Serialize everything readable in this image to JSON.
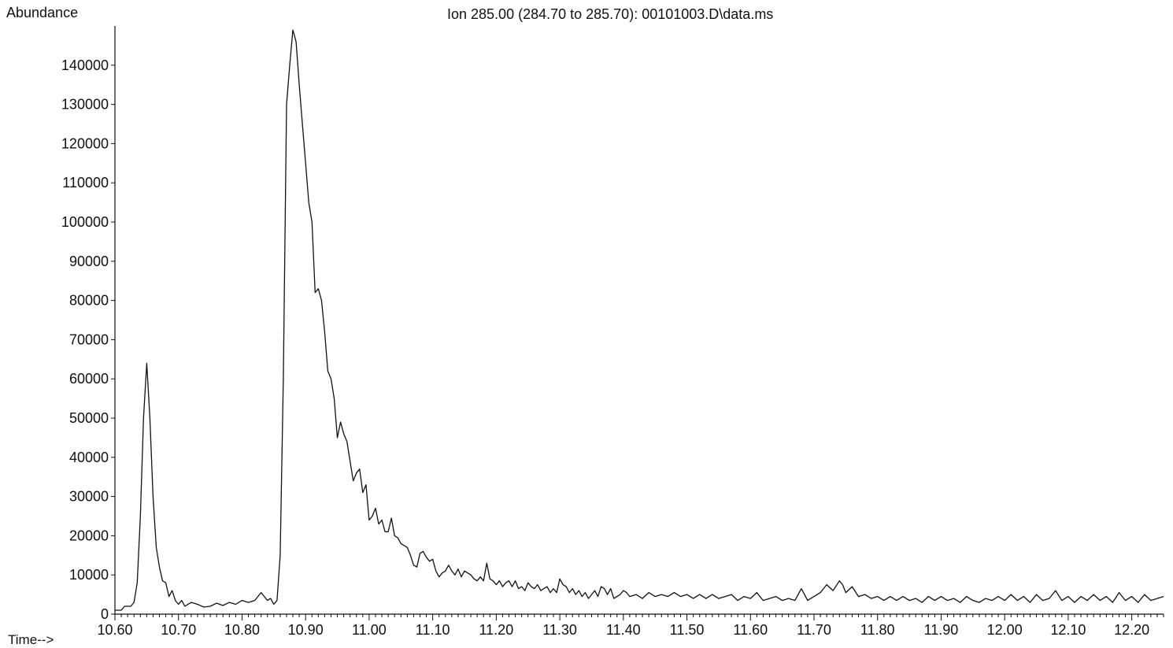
{
  "chart_data": {
    "type": "line",
    "title": "Ion 285.00 (284.70 to 285.70): 00101003.D\\data.ms",
    "ylabel": "Abundance",
    "xlabel": "Time-->",
    "xlim": [
      10.6,
      12.25
    ],
    "ylim": [
      0,
      150000
    ],
    "x_ticks": [
      "10.60",
      "10.70",
      "10.80",
      "10.90",
      "11.00",
      "11.10",
      "11.20",
      "11.30",
      "11.40",
      "11.50",
      "11.60",
      "11.70",
      "11.80",
      "11.90",
      "12.00",
      "12.10",
      "12.20"
    ],
    "y_ticks": [
      "0",
      "10000",
      "20000",
      "30000",
      "40000",
      "50000",
      "60000",
      "70000",
      "80000",
      "90000",
      "100000",
      "110000",
      "120000",
      "130000",
      "140000"
    ],
    "grid": false,
    "series": [
      {
        "points": [
          [
            10.6,
            1000
          ],
          [
            10.61,
            1000
          ],
          [
            10.615,
            2000
          ],
          [
            10.625,
            2000
          ],
          [
            10.63,
            3000
          ],
          [
            10.635,
            8000
          ],
          [
            10.64,
            25000
          ],
          [
            10.645,
            50000
          ],
          [
            10.65,
            64000
          ],
          [
            10.655,
            50000
          ],
          [
            10.66,
            30000
          ],
          [
            10.665,
            17000
          ],
          [
            10.67,
            12000
          ],
          [
            10.675,
            8500
          ],
          [
            10.68,
            8000
          ],
          [
            10.685,
            4500
          ],
          [
            10.69,
            6000
          ],
          [
            10.695,
            3500
          ],
          [
            10.7,
            2500
          ],
          [
            10.705,
            3500
          ],
          [
            10.71,
            2000
          ],
          [
            10.72,
            3000
          ],
          [
            10.73,
            2500
          ],
          [
            10.74,
            1800
          ],
          [
            10.75,
            2000
          ],
          [
            10.76,
            2800
          ],
          [
            10.77,
            2200
          ],
          [
            10.78,
            3000
          ],
          [
            10.79,
            2500
          ],
          [
            10.8,
            3500
          ],
          [
            10.81,
            3000
          ],
          [
            10.82,
            3500
          ],
          [
            10.83,
            5500
          ],
          [
            10.835,
            4500
          ],
          [
            10.84,
            3500
          ],
          [
            10.845,
            4000
          ],
          [
            10.85,
            2500
          ],
          [
            10.855,
            3500
          ],
          [
            10.86,
            15000
          ],
          [
            10.865,
            60000
          ],
          [
            10.87,
            130000
          ],
          [
            10.875,
            140000
          ],
          [
            10.88,
            149000
          ],
          [
            10.885,
            146000
          ],
          [
            10.89,
            135000
          ],
          [
            10.895,
            125000
          ],
          [
            10.9,
            115000
          ],
          [
            10.905,
            105000
          ],
          [
            10.91,
            100000
          ],
          [
            10.915,
            82000
          ],
          [
            10.92,
            83000
          ],
          [
            10.925,
            80000
          ],
          [
            10.93,
            72000
          ],
          [
            10.935,
            62000
          ],
          [
            10.94,
            60000
          ],
          [
            10.945,
            55000
          ],
          [
            10.95,
            45000
          ],
          [
            10.955,
            49000
          ],
          [
            10.96,
            46000
          ],
          [
            10.965,
            44000
          ],
          [
            10.97,
            39000
          ],
          [
            10.975,
            34000
          ],
          [
            10.98,
            36000
          ],
          [
            10.985,
            37000
          ],
          [
            10.99,
            31000
          ],
          [
            10.995,
            33000
          ],
          [
            11.0,
            24000
          ],
          [
            11.005,
            25000
          ],
          [
            11.01,
            27000
          ],
          [
            11.015,
            23000
          ],
          [
            11.02,
            24000
          ],
          [
            11.025,
            21000
          ],
          [
            11.03,
            21000
          ],
          [
            11.035,
            24500
          ],
          [
            11.04,
            20000
          ],
          [
            11.045,
            19500
          ],
          [
            11.05,
            18000
          ],
          [
            11.06,
            17000
          ],
          [
            11.065,
            15000
          ],
          [
            11.07,
            12500
          ],
          [
            11.075,
            12000
          ],
          [
            11.08,
            15500
          ],
          [
            11.085,
            16000
          ],
          [
            11.09,
            14500
          ],
          [
            11.095,
            13500
          ],
          [
            11.1,
            14000
          ],
          [
            11.105,
            11000
          ],
          [
            11.11,
            9500
          ],
          [
            11.115,
            10500
          ],
          [
            11.12,
            11000
          ],
          [
            11.125,
            12500
          ],
          [
            11.13,
            11000
          ],
          [
            11.135,
            10000
          ],
          [
            11.14,
            11500
          ],
          [
            11.145,
            9500
          ],
          [
            11.15,
            11000
          ],
          [
            11.155,
            10500
          ],
          [
            11.16,
            10000
          ],
          [
            11.165,
            9000
          ],
          [
            11.17,
            8500
          ],
          [
            11.175,
            9500
          ],
          [
            11.18,
            8500
          ],
          [
            11.185,
            13000
          ],
          [
            11.19,
            9000
          ],
          [
            11.195,
            8500
          ],
          [
            11.2,
            7500
          ],
          [
            11.205,
            8500
          ],
          [
            11.21,
            7000
          ],
          [
            11.215,
            8000
          ],
          [
            11.22,
            8500
          ],
          [
            11.225,
            7000
          ],
          [
            11.23,
            8500
          ],
          [
            11.235,
            6500
          ],
          [
            11.24,
            7000
          ],
          [
            11.245,
            6000
          ],
          [
            11.25,
            8000
          ],
          [
            11.255,
            7000
          ],
          [
            11.26,
            6500
          ],
          [
            11.265,
            7500
          ],
          [
            11.27,
            6000
          ],
          [
            11.275,
            6500
          ],
          [
            11.28,
            7000
          ],
          [
            11.285,
            5500
          ],
          [
            11.29,
            6500
          ],
          [
            11.295,
            5500
          ],
          [
            11.3,
            9000
          ],
          [
            11.305,
            7500
          ],
          [
            11.31,
            7000
          ],
          [
            11.315,
            5500
          ],
          [
            11.32,
            6500
          ],
          [
            11.325,
            5000
          ],
          [
            11.33,
            6000
          ],
          [
            11.335,
            4500
          ],
          [
            11.34,
            5500
          ],
          [
            11.345,
            4000
          ],
          [
            11.35,
            5000
          ],
          [
            11.355,
            6000
          ],
          [
            11.36,
            4500
          ],
          [
            11.365,
            7000
          ],
          [
            11.37,
            6500
          ],
          [
            11.375,
            5000
          ],
          [
            11.38,
            6500
          ],
          [
            11.385,
            4000
          ],
          [
            11.39,
            4500
          ],
          [
            11.395,
            5000
          ],
          [
            11.4,
            6000
          ],
          [
            11.405,
            5500
          ],
          [
            11.41,
            4500
          ],
          [
            11.42,
            5000
          ],
          [
            11.43,
            4000
          ],
          [
            11.44,
            5500
          ],
          [
            11.45,
            4500
          ],
          [
            11.46,
            5000
          ],
          [
            11.47,
            4500
          ],
          [
            11.48,
            5500
          ],
          [
            11.49,
            4500
          ],
          [
            11.5,
            5000
          ],
          [
            11.51,
            4000
          ],
          [
            11.52,
            5000
          ],
          [
            11.53,
            4000
          ],
          [
            11.54,
            5000
          ],
          [
            11.55,
            4000
          ],
          [
            11.56,
            4500
          ],
          [
            11.57,
            5000
          ],
          [
            11.58,
            3500
          ],
          [
            11.59,
            4500
          ],
          [
            11.6,
            4000
          ],
          [
            11.61,
            5500
          ],
          [
            11.62,
            3500
          ],
          [
            11.63,
            4000
          ],
          [
            11.64,
            4500
          ],
          [
            11.65,
            3500
          ],
          [
            11.66,
            4000
          ],
          [
            11.67,
            3500
          ],
          [
            11.68,
            6500
          ],
          [
            11.69,
            3500
          ],
          [
            11.7,
            4500
          ],
          [
            11.71,
            5500
          ],
          [
            11.72,
            7500
          ],
          [
            11.73,
            6000
          ],
          [
            11.74,
            8500
          ],
          [
            11.745,
            7500
          ],
          [
            11.75,
            5500
          ],
          [
            11.76,
            7000
          ],
          [
            11.77,
            4500
          ],
          [
            11.78,
            5000
          ],
          [
            11.79,
            4000
          ],
          [
            11.8,
            4500
          ],
          [
            11.81,
            3500
          ],
          [
            11.82,
            4500
          ],
          [
            11.83,
            3500
          ],
          [
            11.84,
            4500
          ],
          [
            11.85,
            3500
          ],
          [
            11.86,
            4000
          ],
          [
            11.87,
            3000
          ],
          [
            11.88,
            4500
          ],
          [
            11.89,
            3500
          ],
          [
            11.9,
            4500
          ],
          [
            11.91,
            3500
          ],
          [
            11.92,
            4000
          ],
          [
            11.93,
            3000
          ],
          [
            11.94,
            4500
          ],
          [
            11.95,
            3500
          ],
          [
            11.96,
            3000
          ],
          [
            11.97,
            4000
          ],
          [
            11.98,
            3500
          ],
          [
            11.99,
            4500
          ],
          [
            12.0,
            3500
          ],
          [
            12.01,
            5000
          ],
          [
            12.02,
            3500
          ],
          [
            12.03,
            4500
          ],
          [
            12.04,
            3000
          ],
          [
            12.05,
            5000
          ],
          [
            12.06,
            3500
          ],
          [
            12.07,
            4000
          ],
          [
            12.08,
            6000
          ],
          [
            12.09,
            3500
          ],
          [
            12.1,
            4500
          ],
          [
            12.11,
            3000
          ],
          [
            12.12,
            4500
          ],
          [
            12.13,
            3500
          ],
          [
            12.14,
            5000
          ],
          [
            12.15,
            3500
          ],
          [
            12.16,
            4500
          ],
          [
            12.17,
            3000
          ],
          [
            12.18,
            5500
          ],
          [
            12.19,
            3500
          ],
          [
            12.2,
            4500
          ],
          [
            12.21,
            3000
          ],
          [
            12.22,
            5000
          ],
          [
            12.23,
            3500
          ],
          [
            12.24,
            4000
          ],
          [
            12.25,
            4500
          ]
        ]
      }
    ]
  }
}
